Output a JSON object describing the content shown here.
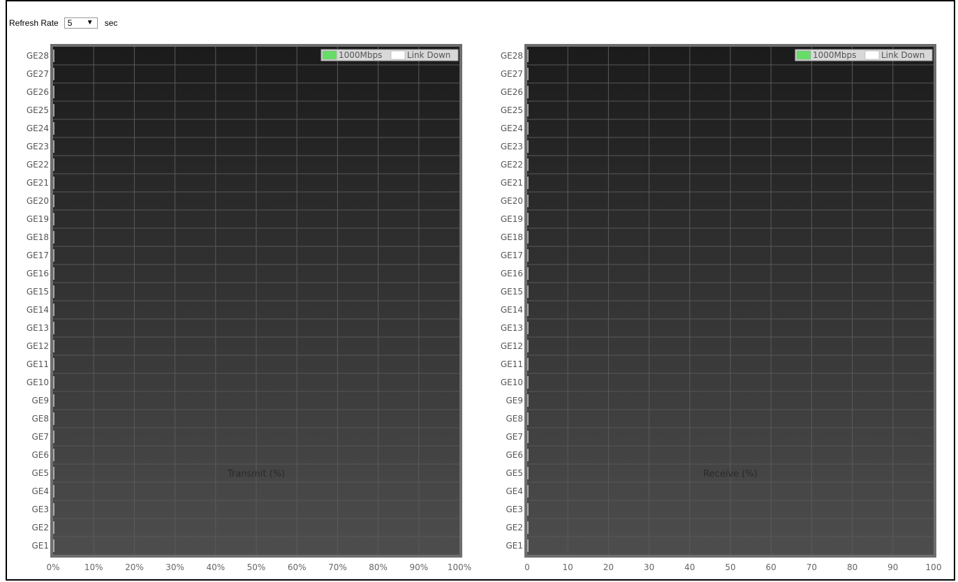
{
  "refresh": {
    "label": "Refresh Rate",
    "value": "5",
    "unit": "sec"
  },
  "legend": {
    "items": [
      {
        "label": "1000Mbps",
        "color": "#66dd66"
      },
      {
        "label": "Link Down",
        "color": "#ffffff"
      }
    ]
  },
  "chart_data": [
    {
      "type": "bar",
      "orientation": "horizontal",
      "categories": [
        "GE28",
        "GE27",
        "GE26",
        "GE25",
        "GE24",
        "GE23",
        "GE22",
        "GE21",
        "GE20",
        "GE19",
        "GE18",
        "GE17",
        "GE16",
        "GE15",
        "GE14",
        "GE13",
        "GE12",
        "GE11",
        "GE10",
        "GE9",
        "GE8",
        "GE7",
        "GE6",
        "GE5",
        "GE4",
        "GE3",
        "GE2",
        "GE1"
      ],
      "values": [
        0,
        0,
        0,
        0,
        0,
        0,
        0,
        0,
        0,
        0,
        0,
        0,
        0,
        0,
        0,
        0,
        0,
        0,
        0,
        0,
        0,
        0,
        0,
        0,
        0,
        0,
        0,
        0
      ],
      "xlabel": "Transmit (%)",
      "xlim": [
        0,
        100
      ],
      "xticks": [
        "0%",
        "10%",
        "20%",
        "30%",
        "40%",
        "50%",
        "60%",
        "70%",
        "80%",
        "90%",
        "100%"
      ],
      "grid": true,
      "legend_position": "top-right"
    },
    {
      "type": "bar",
      "orientation": "horizontal",
      "categories": [
        "GE28",
        "GE27",
        "GE26",
        "GE25",
        "GE24",
        "GE23",
        "GE22",
        "GE21",
        "GE20",
        "GE19",
        "GE18",
        "GE17",
        "GE16",
        "GE15",
        "GE14",
        "GE13",
        "GE12",
        "GE11",
        "GE10",
        "GE9",
        "GE8",
        "GE7",
        "GE6",
        "GE5",
        "GE4",
        "GE3",
        "GE2",
        "GE1"
      ],
      "values": [
        0,
        0,
        0,
        0,
        0,
        0,
        0,
        0,
        0,
        0,
        0,
        0,
        0,
        0,
        0,
        0,
        0,
        0,
        0,
        0,
        0,
        0,
        0,
        0,
        0,
        0,
        0,
        0
      ],
      "xlabel": "Receive (%)",
      "xlim": [
        0,
        100
      ],
      "xticks": [
        "0",
        "10",
        "20",
        "30",
        "40",
        "50",
        "60",
        "70",
        "80",
        "90",
        "100"
      ],
      "grid": true,
      "legend_position": "top-right"
    }
  ]
}
